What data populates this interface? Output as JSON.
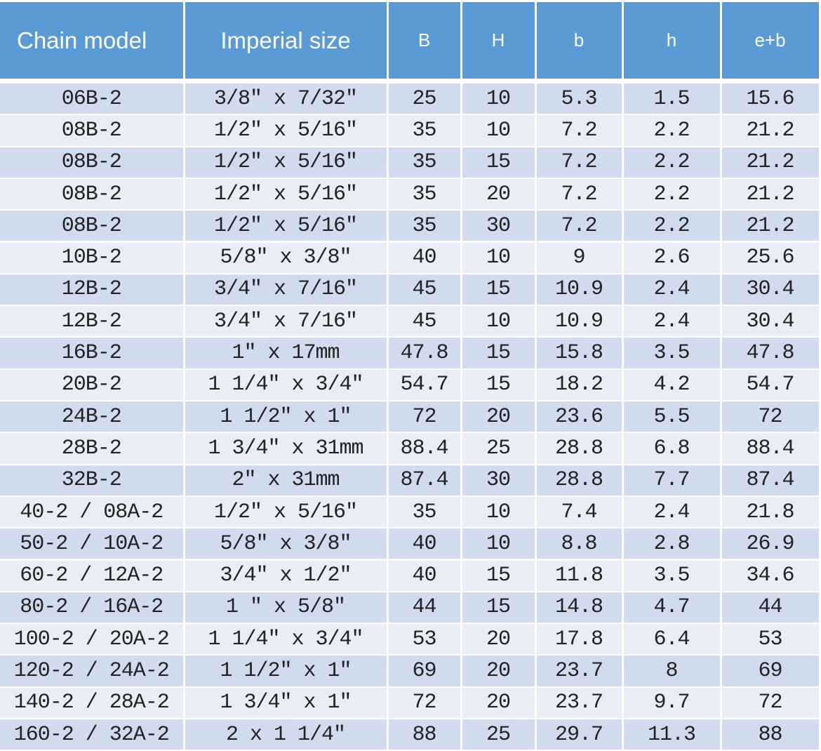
{
  "table": {
    "header": [
      "Chain model",
      "Imperial size",
      "B",
      "H",
      "b",
      "h",
      "e+b"
    ],
    "rows": [
      [
        "06B-2",
        "3/8″ x 7/32″",
        "25",
        "10",
        "5.3",
        "1.5",
        "15.6"
      ],
      [
        "08B-2",
        "1/2″ x 5/16″",
        "35",
        "10",
        "7.2",
        "2.2",
        "21.2"
      ],
      [
        "08B-2",
        "1/2″ x 5/16″",
        "35",
        "15",
        "7.2",
        "2.2",
        "21.2"
      ],
      [
        "08B-2",
        "1/2″ x 5/16″",
        "35",
        "20",
        "7.2",
        "2.2",
        "21.2"
      ],
      [
        "08B-2",
        "1/2″ x 5/16″",
        "35",
        "30",
        "7.2",
        "2.2",
        "21.2"
      ],
      [
        "10B-2",
        "5/8″ x 3/8″",
        "40",
        "10",
        "9",
        "2.6",
        "25.6"
      ],
      [
        "12B-2",
        "3/4″ x 7/16″",
        "45",
        "15",
        "10.9",
        "2.4",
        "30.4"
      ],
      [
        "12B-2",
        "3/4″ x 7/16″",
        "45",
        "10",
        "10.9",
        "2.4",
        "30.4"
      ],
      [
        "16B-2",
        "1″ x 17mm",
        "47.8",
        "15",
        "15.8",
        "3.5",
        "47.8"
      ],
      [
        "20B-2",
        "1 1/4″ x 3/4″",
        "54.7",
        "15",
        "18.2",
        "4.2",
        "54.7"
      ],
      [
        "24B-2",
        "1 1/2″ x 1″",
        "72",
        "20",
        "23.6",
        "5.5",
        "72"
      ],
      [
        "28B-2",
        "1 3/4″ x 31mm",
        "88.4",
        "25",
        "28.8",
        "6.8",
        "88.4"
      ],
      [
        "32B-2",
        "2″ x 31mm",
        "87.4",
        "30",
        "28.8",
        "7.7",
        "87.4"
      ],
      [
        "40-2 / 08A-2",
        "1/2″ x 5/16″",
        "35",
        "10",
        "7.4",
        "2.4",
        "21.8"
      ],
      [
        "50-2 / 10A-2",
        "5/8″ x 3/8″",
        "40",
        "10",
        "8.8",
        "2.8",
        "26.9"
      ],
      [
        "60-2 / 12A-2",
        "3/4″ x 1/2″",
        "40",
        "15",
        "11.8",
        "3.5",
        "34.6"
      ],
      [
        "80-2 / 16A-2",
        "1 ″ x 5/8″",
        "44",
        "15",
        "14.8",
        "4.7",
        "44"
      ],
      [
        "100-2 / 20A-2",
        "1 1/4″ x 3/4″",
        "53",
        "20",
        "17.8",
        "6.4",
        "53"
      ],
      [
        "120-2 / 24A-2",
        "1 1/2″ x 1″",
        "69",
        "20",
        "23.7",
        "8",
        "69"
      ],
      [
        "140-2 / 28A-2",
        "1 3/4″ x 1″",
        "72",
        "20",
        "23.7",
        "9.7",
        "72"
      ],
      [
        "160-2 / 32A-2",
        "2 x 1 1/4″",
        "88",
        "25",
        "29.7",
        "11.3",
        "88"
      ]
    ]
  }
}
